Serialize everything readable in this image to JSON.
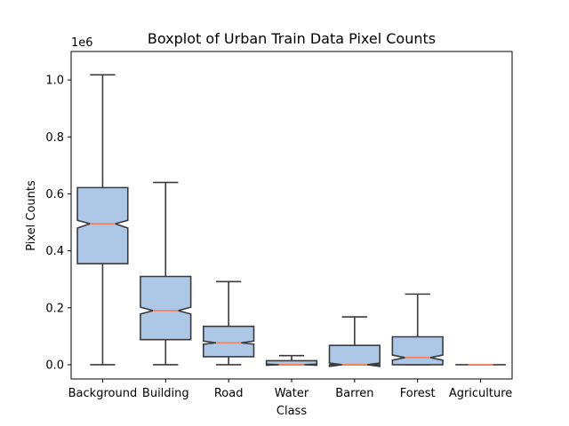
{
  "chart_data": {
    "type": "box",
    "title": "Boxplot of Urban Train Data Pixel Counts",
    "xlabel": "Class",
    "ylabel": "Pixel Counts",
    "y_offset_label": "1e6",
    "y_scale": 1000000,
    "ylim": [
      -50000,
      1100000
    ],
    "yticks": [
      0,
      200000,
      400000,
      600000,
      800000,
      1000000
    ],
    "ytick_labels": [
      "0.0",
      "0.2",
      "0.4",
      "0.6",
      "0.8",
      "1.0"
    ],
    "notched": true,
    "grid": false,
    "box_color": "#adc8e6",
    "edge_color": "#3b3b3b",
    "median_color": "#f4845f",
    "categories": [
      "Background",
      "Building",
      "Road",
      "Water",
      "Barren",
      "Forest",
      "Agriculture"
    ],
    "boxes": [
      {
        "whisker_low": 0,
        "q1": 355000,
        "median": 495000,
        "q3": 622000,
        "whisker_high": 1018000,
        "notch_low": 480000,
        "notch_high": 507000
      },
      {
        "whisker_low": 0,
        "q1": 88000,
        "median": 190000,
        "q3": 310000,
        "whisker_high": 640000,
        "notch_low": 178000,
        "notch_high": 202000
      },
      {
        "whisker_low": 0,
        "q1": 28000,
        "median": 77000,
        "q3": 135000,
        "whisker_high": 292000,
        "notch_low": 72000,
        "notch_high": 83000
      },
      {
        "whisker_low": 0,
        "q1": 0,
        "median": 0,
        "q3": 14000,
        "whisker_high": 32000,
        "notch_low": -2000,
        "notch_high": 2000
      },
      {
        "whisker_low": 0,
        "q1": 0,
        "median": 0,
        "q3": 68000,
        "whisker_high": 168000,
        "notch_low": -6000,
        "notch_high": 6000
      },
      {
        "whisker_low": 0,
        "q1": 0,
        "median": 25000,
        "q3": 98000,
        "whisker_high": 248000,
        "notch_low": 16000,
        "notch_high": 34000
      },
      {
        "whisker_low": 0,
        "q1": 0,
        "median": 0,
        "q3": 0,
        "whisker_high": 0,
        "notch_low": 0,
        "notch_high": 0
      }
    ]
  }
}
